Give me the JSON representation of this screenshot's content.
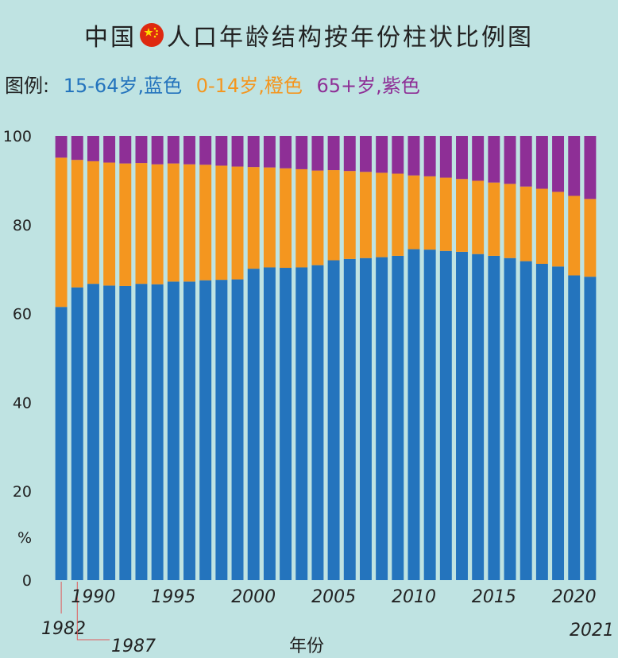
{
  "title": {
    "before_flag": "中国",
    "after_flag": "人口年龄结构按年份柱状比例图",
    "flag_icon": "china-flag-icon"
  },
  "legend": {
    "label": "图例:",
    "items": [
      {
        "text": "15-64岁,蓝色",
        "color": "#2474bd"
      },
      {
        "text": "0-14岁,橙色",
        "color": "#f4961f"
      },
      {
        "text": "65+岁,紫色",
        "color": "#8e2f96"
      }
    ]
  },
  "colors": {
    "background": "#bfe3e2",
    "working": "#2474bd",
    "young": "#f4961f",
    "elderly": "#8e2f96"
  },
  "chart_data": {
    "type": "bar",
    "stacked": true,
    "categories": [
      1982,
      1987,
      1990,
      1991,
      1992,
      1993,
      1994,
      1995,
      1996,
      1997,
      1998,
      1999,
      2000,
      2001,
      2002,
      2003,
      2004,
      2005,
      2006,
      2007,
      2008,
      2009,
      2010,
      2011,
      2012,
      2013,
      2014,
      2015,
      2016,
      2017,
      2018,
      2019,
      2020,
      2021
    ],
    "series": [
      {
        "color": "#2474bd",
        "values": [
          61.5,
          65.9,
          66.7,
          66.3,
          66.2,
          66.7,
          66.6,
          67.2,
          67.2,
          67.5,
          67.6,
          67.7,
          70.1,
          70.4,
          70.3,
          70.4,
          70.9,
          72.0,
          72.3,
          72.5,
          72.7,
          73.0,
          74.5,
          74.4,
          74.1,
          73.9,
          73.4,
          73.0,
          72.5,
          71.8,
          71.2,
          70.6,
          68.6,
          68.3
        ]
      },
      {
        "color": "#f4961f",
        "values": [
          33.6,
          28.7,
          27.6,
          27.7,
          27.6,
          27.2,
          27.0,
          26.6,
          26.4,
          26.0,
          25.7,
          25.4,
          22.9,
          22.5,
          22.4,
          22.1,
          21.3,
          20.3,
          19.8,
          19.4,
          19.0,
          18.5,
          16.6,
          16.5,
          16.5,
          16.4,
          16.5,
          16.5,
          16.7,
          16.8,
          16.9,
          16.8,
          17.9,
          17.5
        ]
      },
      {
        "color": "#8e2f96",
        "values": [
          4.9,
          5.4,
          5.7,
          6.0,
          6.2,
          6.1,
          6.4,
          6.2,
          6.4,
          6.5,
          6.7,
          6.9,
          7.0,
          7.1,
          7.3,
          7.5,
          7.8,
          7.7,
          7.9,
          8.1,
          8.3,
          8.5,
          8.9,
          9.1,
          9.4,
          9.7,
          10.1,
          10.5,
          10.8,
          11.4,
          11.9,
          12.6,
          13.5,
          14.2
        ]
      }
    ],
    "ylim": [
      0,
      100
    ],
    "y_ticks": [
      0,
      20,
      40,
      60,
      80,
      100
    ],
    "ylabel": "%",
    "xlabel": "年份",
    "x_tick_labels": [
      {
        "year": 1982,
        "text": "1982",
        "callout": true
      },
      {
        "year": 1987,
        "text": "1987",
        "callout": true
      },
      {
        "year": 1990,
        "text": "1990"
      },
      {
        "year": 1995,
        "text": "1995"
      },
      {
        "year": 2000,
        "text": "2000"
      },
      {
        "year": 2005,
        "text": "2005"
      },
      {
        "year": 2010,
        "text": "2010"
      },
      {
        "year": 2015,
        "text": "2015"
      },
      {
        "year": 2020,
        "text": "2020"
      },
      {
        "year": 2021,
        "text": "2021"
      }
    ]
  }
}
